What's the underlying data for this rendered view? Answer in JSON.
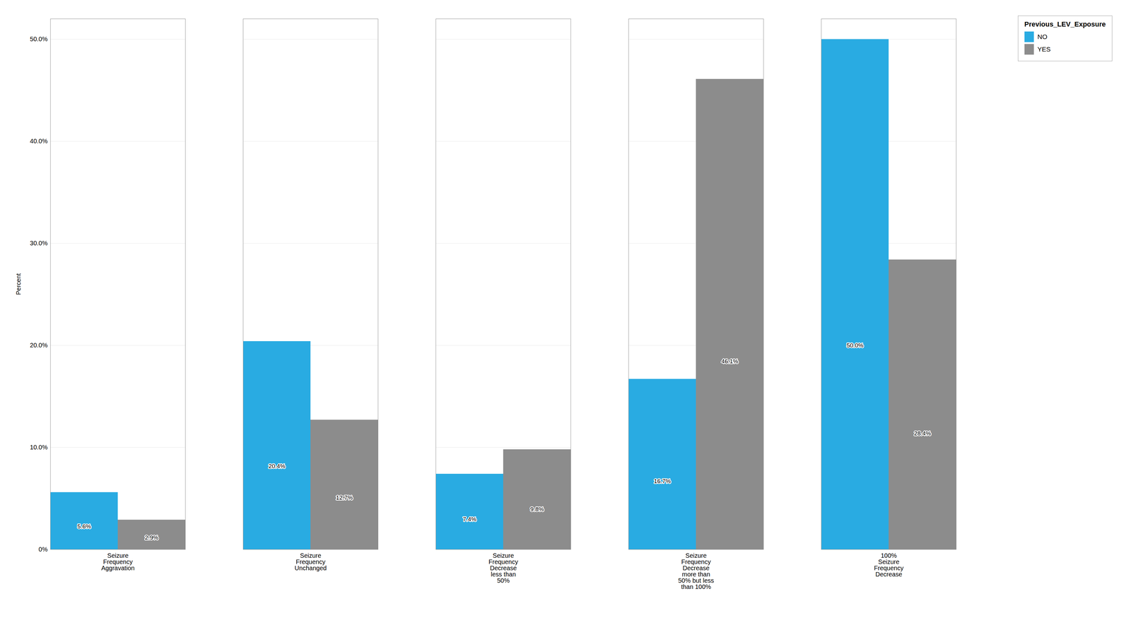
{
  "chart_data": {
    "type": "bar",
    "categories": [
      "Seizure\nFrequency\nAggravation",
      "Seizure\nFrequency\nUnchanged",
      "Seizure\nFrequency\nDecrease\nless than\n50%",
      "Seizure\nFrequency\nDecrease\nmore than\n50% but less\nthan 100%",
      "100%\nSeizure\nFrequency\nDecrease"
    ],
    "series": [
      {
        "name": "NO",
        "color": "#29ABE2",
        "values": [
          5.6,
          20.4,
          7.4,
          16.7,
          50.0
        ],
        "value_labels": [
          "5.6%",
          "20.4%",
          "7.4%",
          "16.7%",
          "50.0%"
        ]
      },
      {
        "name": "YES",
        "color": "#8C8C8C",
        "values": [
          2.9,
          12.7,
          9.8,
          46.1,
          28.4
        ],
        "value_labels": [
          "2.9%",
          "12.7%",
          "9.8%",
          "46.1%",
          "28.4%"
        ]
      }
    ],
    "ylabel": "Percent",
    "legend_title": "Previous_LEV_Exposure",
    "ylim": [
      0,
      52
    ],
    "yticks": [
      {
        "value": 0,
        "label": "0%"
      },
      {
        "value": 10,
        "label": "10.0%"
      },
      {
        "value": 20,
        "label": "20.0%"
      },
      {
        "value": 30,
        "label": "30.0%"
      },
      {
        "value": 40,
        "label": "40.0%"
      },
      {
        "value": 50,
        "label": "50.0%"
      }
    ],
    "grid": true,
    "legend": "upper right",
    "data_labels": true
  }
}
